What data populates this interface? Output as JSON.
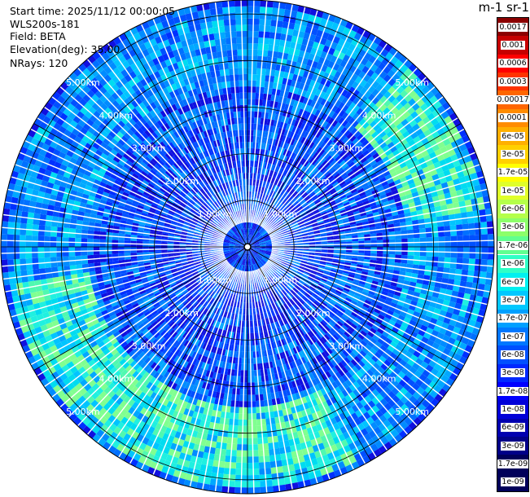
{
  "header": {
    "start_time": "Start time: 2025/11/12 00:00:05",
    "instrument": "WLS200s-181",
    "field": "Field: BETA",
    "elevation": "Elevation(deg): 35.00",
    "nrays": "NRays: 120"
  },
  "colorbar": {
    "title": "m-1 sr-1",
    "colors": [
      "#8b0000",
      "#c60000",
      "#ff0000",
      "#ff3300",
      "#ff6600",
      "#ff8c00",
      "#ffb000",
      "#ffd000",
      "#ffff00",
      "#e0ff2a",
      "#b4ff4a",
      "#8cff6a",
      "#60ff90",
      "#2fffc6",
      "#00f0f0",
      "#00c8ff",
      "#00a0ff",
      "#0078ff",
      "#0050ff",
      "#0028ff",
      "#0000ff",
      "#0000d8",
      "#0000b0",
      "#000088",
      "#00005a"
    ],
    "labels": [
      "0.0017",
      "0.001",
      "0.0006",
      "0.0003",
      "0.00017",
      "0.0001",
      "6e-05",
      "3e-05",
      "1.7e-05",
      "1e-05",
      "6e-06",
      "3e-06",
      "1.7e-06",
      "1e-06",
      "6e-07",
      "3e-07",
      "1.7e-07",
      "1e-07",
      "6e-08",
      "3e-08",
      "1.7e-08",
      "1e-08",
      "6e-09",
      "3e-09",
      "1.7e-09",
      "1e-09"
    ]
  },
  "chart_data": {
    "type": "heatmap",
    "title": "",
    "subtitle": "WLS200s-181",
    "field": "BETA",
    "units": "m-1 sr-1",
    "elevation_deg": 35.0,
    "n_rays": 120,
    "start_time": "2025/11/12 00:00:05",
    "range_rings_km": [
      1.0,
      2.0,
      3.0,
      4.0,
      5.0
    ],
    "range_ring_labels": [
      "1.00km",
      "2.00km",
      "3.00km",
      "4.00km",
      "5.00km"
    ],
    "max_range_km": 5.3,
    "azimuth_spokes_deg": [
      0,
      30,
      60,
      90,
      120,
      150,
      180,
      210,
      240,
      270,
      300,
      330
    ],
    "color_scale": "log",
    "value_range": [
      1e-09,
      0.0017
    ],
    "dominant_level": 1e-08,
    "enhanced_band_km": [
      3.5,
      4.5
    ],
    "enhanced_band_level": 3e-07
  }
}
